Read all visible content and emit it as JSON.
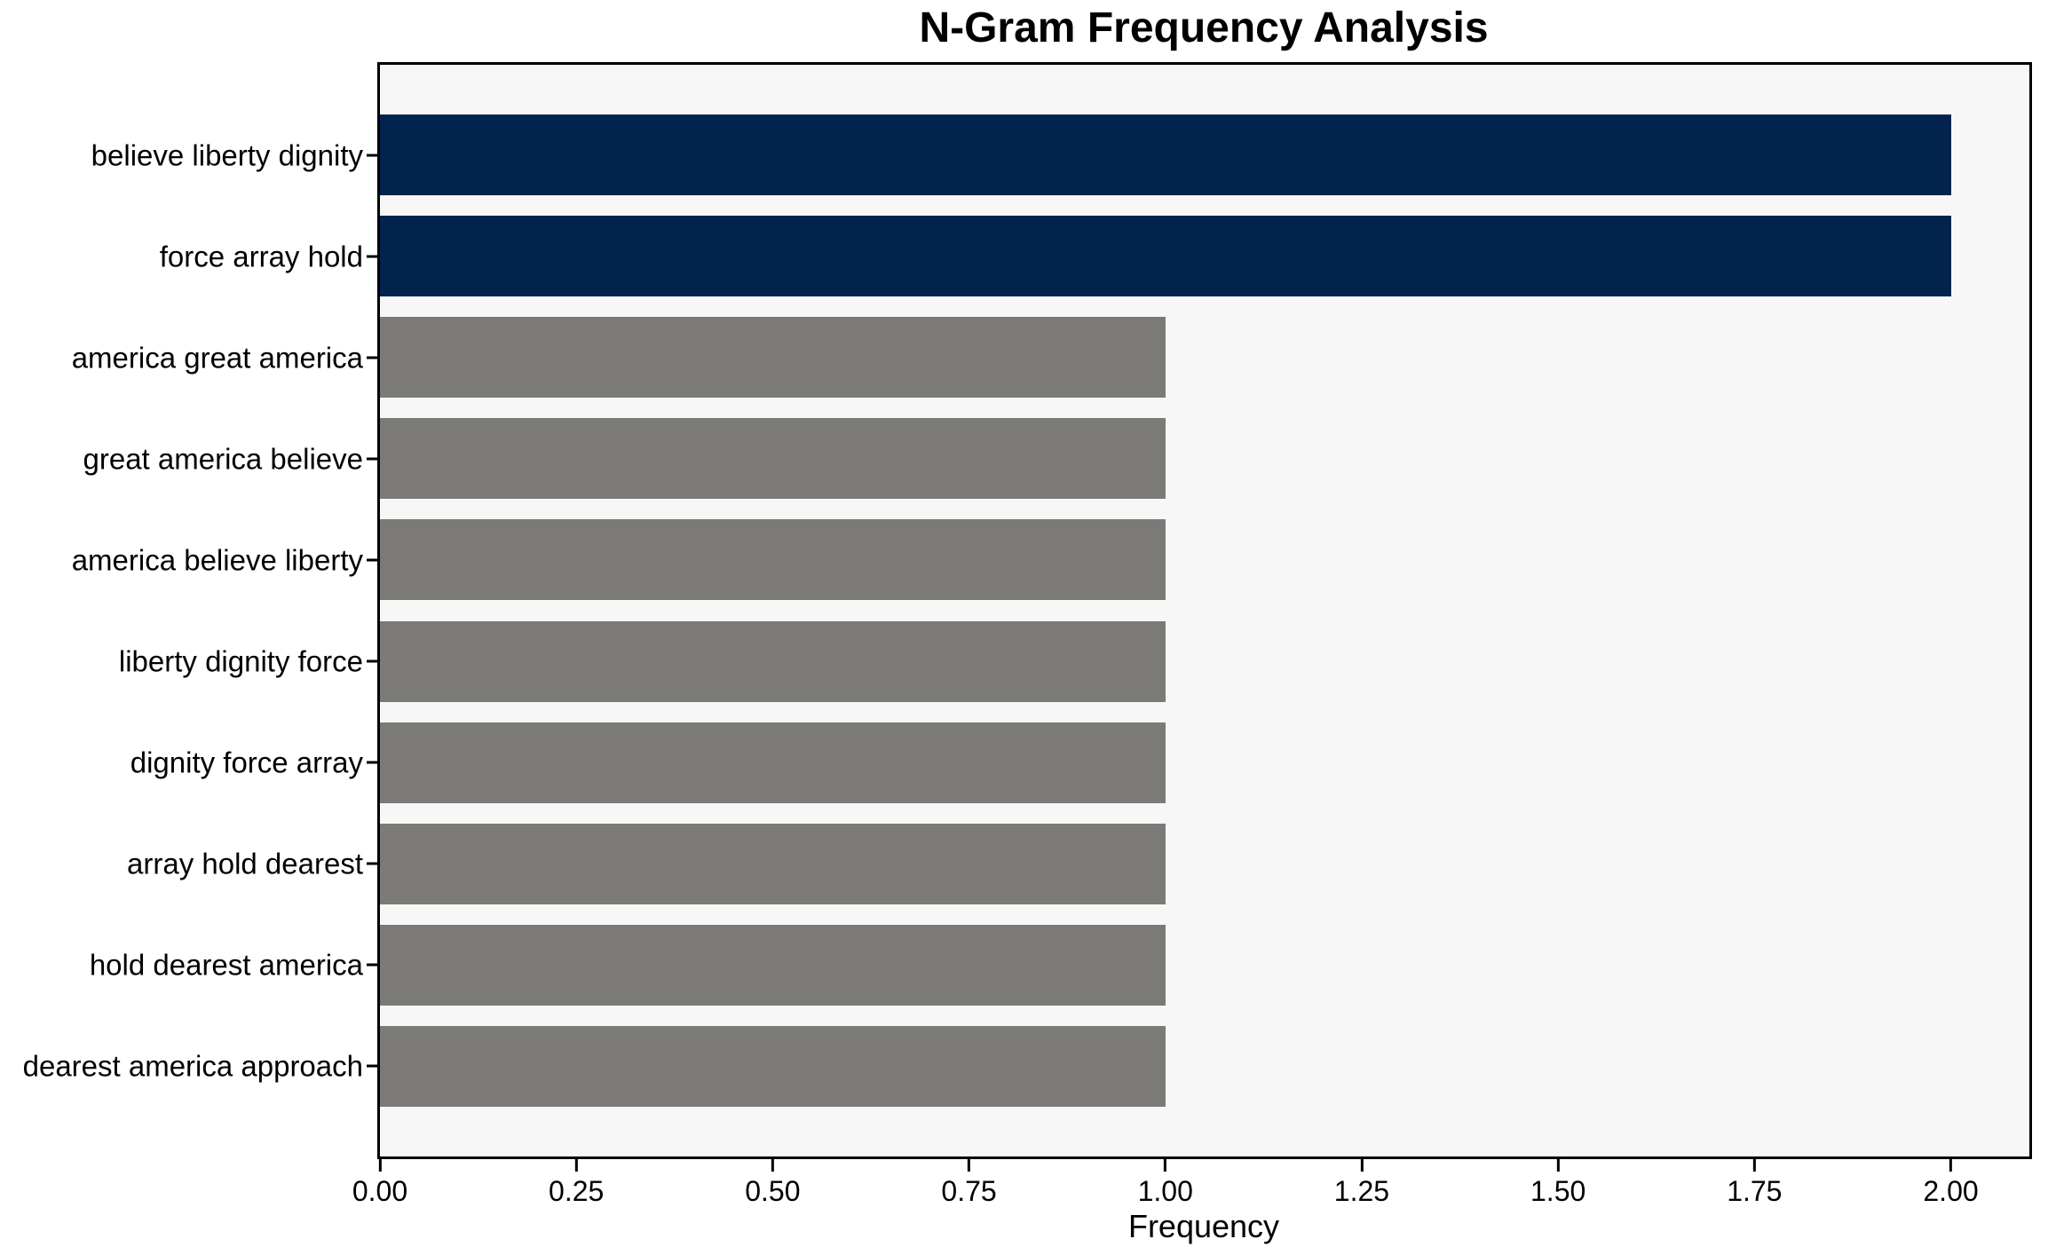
{
  "title": "N-Gram Frequency Analysis",
  "x_axis_label": "Frequency",
  "colors": {
    "bar_highlight": "#02234d",
    "bar_normal": "#7b7a76",
    "plot_background": "#f7f7f7",
    "figure_background": "#ffffff",
    "axis_line": "#000000",
    "text": "#000000"
  },
  "chart_data": {
    "type": "bar",
    "orientation": "horizontal",
    "title": "N-Gram Frequency Analysis",
    "xlabel": "Frequency",
    "ylabel": "",
    "grid": false,
    "legend": null,
    "xlim": [
      0,
      2.1
    ],
    "categories": [
      "believe liberty dignity",
      "force array hold",
      "america great america",
      "great america believe",
      "america believe liberty",
      "liberty dignity force",
      "dignity force array",
      "array hold dearest",
      "hold dearest america",
      "dearest america approach"
    ],
    "values": [
      2,
      2,
      1,
      1,
      1,
      1,
      1,
      1,
      1,
      1
    ],
    "bar_colors": [
      "#02234d",
      "#02234d",
      "#7b7a76",
      "#7b7a76",
      "#7b7a76",
      "#7b7a76",
      "#7b7a76",
      "#7b7a76",
      "#7b7a76",
      "#7b7a76"
    ],
    "xticks": [
      {
        "value": 0.0,
        "label": "0.00"
      },
      {
        "value": 0.25,
        "label": "0.25"
      },
      {
        "value": 0.5,
        "label": "0.50"
      },
      {
        "value": 0.75,
        "label": "0.75"
      },
      {
        "value": 1.0,
        "label": "1.00"
      },
      {
        "value": 1.25,
        "label": "1.25"
      },
      {
        "value": 1.5,
        "label": "1.50"
      },
      {
        "value": 1.75,
        "label": "1.75"
      },
      {
        "value": 2.0,
        "label": "2.00"
      }
    ]
  }
}
